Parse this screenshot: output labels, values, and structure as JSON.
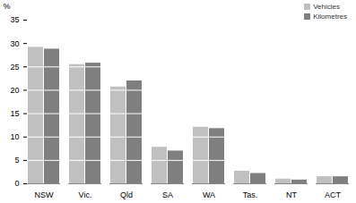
{
  "chart_data": {
    "type": "bar",
    "categories": [
      "NSW",
      "Vic.",
      "Qld",
      "SA",
      "WA",
      "Tas.",
      "NT",
      "ACT"
    ],
    "series": [
      {
        "name": "Vehicles",
        "color": "#c0c0c0",
        "values": [
          29.2,
          25.5,
          20.7,
          7.8,
          12.1,
          2.7,
          1.0,
          1.5
        ]
      },
      {
        "name": "Kilometres",
        "color": "#7f7f7f",
        "values": [
          28.8,
          25.8,
          22.0,
          7.0,
          11.8,
          2.2,
          0.8,
          1.5
        ]
      }
    ],
    "y_label": "%",
    "ylim": [
      0,
      35
    ],
    "yticks": [
      0,
      5,
      10,
      15,
      20,
      25,
      30,
      35
    ],
    "grid": true,
    "legend": "top-right"
  }
}
